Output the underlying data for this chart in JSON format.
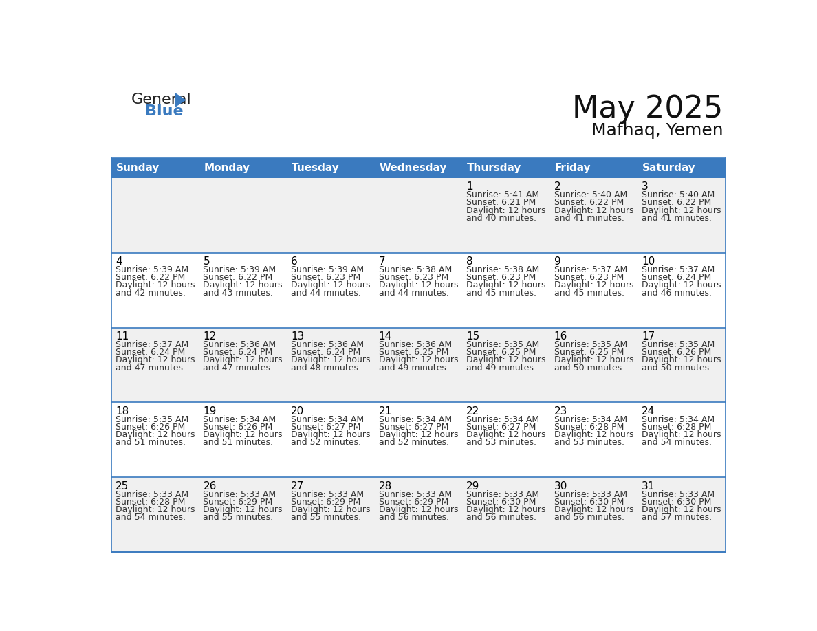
{
  "title": "May 2025",
  "subtitle": "Mafhaq, Yemen",
  "header_bg": "#3a7abf",
  "header_text_color": "#ffffff",
  "days_of_week": [
    "Sunday",
    "Monday",
    "Tuesday",
    "Wednesday",
    "Thursday",
    "Friday",
    "Saturday"
  ],
  "cell_bg_light": "#f0f0f0",
  "cell_bg_white": "#ffffff",
  "cell_border_color": "#3a7abf",
  "day_number_color": "#000000",
  "info_text_color": "#333333",
  "title_fontsize": 32,
  "subtitle_fontsize": 18,
  "header_fontsize": 11,
  "day_num_fontsize": 11,
  "cell_text_fontsize": 9,
  "calendar_data": [
    [
      {
        "day": "",
        "sunrise": "",
        "sunset": "",
        "daylight": ""
      },
      {
        "day": "",
        "sunrise": "",
        "sunset": "",
        "daylight": ""
      },
      {
        "day": "",
        "sunrise": "",
        "sunset": "",
        "daylight": ""
      },
      {
        "day": "",
        "sunrise": "",
        "sunset": "",
        "daylight": ""
      },
      {
        "day": "1",
        "sunrise": "5:41 AM",
        "sunset": "6:21 PM",
        "daylight": "12 hours and 40 minutes."
      },
      {
        "day": "2",
        "sunrise": "5:40 AM",
        "sunset": "6:22 PM",
        "daylight": "12 hours and 41 minutes."
      },
      {
        "day": "3",
        "sunrise": "5:40 AM",
        "sunset": "6:22 PM",
        "daylight": "12 hours and 41 minutes."
      }
    ],
    [
      {
        "day": "4",
        "sunrise": "5:39 AM",
        "sunset": "6:22 PM",
        "daylight": "12 hours and 42 minutes."
      },
      {
        "day": "5",
        "sunrise": "5:39 AM",
        "sunset": "6:22 PM",
        "daylight": "12 hours and 43 minutes."
      },
      {
        "day": "6",
        "sunrise": "5:39 AM",
        "sunset": "6:23 PM",
        "daylight": "12 hours and 44 minutes."
      },
      {
        "day": "7",
        "sunrise": "5:38 AM",
        "sunset": "6:23 PM",
        "daylight": "12 hours and 44 minutes."
      },
      {
        "day": "8",
        "sunrise": "5:38 AM",
        "sunset": "6:23 PM",
        "daylight": "12 hours and 45 minutes."
      },
      {
        "day": "9",
        "sunrise": "5:37 AM",
        "sunset": "6:23 PM",
        "daylight": "12 hours and 45 minutes."
      },
      {
        "day": "10",
        "sunrise": "5:37 AM",
        "sunset": "6:24 PM",
        "daylight": "12 hours and 46 minutes."
      }
    ],
    [
      {
        "day": "11",
        "sunrise": "5:37 AM",
        "sunset": "6:24 PM",
        "daylight": "12 hours and 47 minutes."
      },
      {
        "day": "12",
        "sunrise": "5:36 AM",
        "sunset": "6:24 PM",
        "daylight": "12 hours and 47 minutes."
      },
      {
        "day": "13",
        "sunrise": "5:36 AM",
        "sunset": "6:24 PM",
        "daylight": "12 hours and 48 minutes."
      },
      {
        "day": "14",
        "sunrise": "5:36 AM",
        "sunset": "6:25 PM",
        "daylight": "12 hours and 49 minutes."
      },
      {
        "day": "15",
        "sunrise": "5:35 AM",
        "sunset": "6:25 PM",
        "daylight": "12 hours and 49 minutes."
      },
      {
        "day": "16",
        "sunrise": "5:35 AM",
        "sunset": "6:25 PM",
        "daylight": "12 hours and 50 minutes."
      },
      {
        "day": "17",
        "sunrise": "5:35 AM",
        "sunset": "6:26 PM",
        "daylight": "12 hours and 50 minutes."
      }
    ],
    [
      {
        "day": "18",
        "sunrise": "5:35 AM",
        "sunset": "6:26 PM",
        "daylight": "12 hours and 51 minutes."
      },
      {
        "day": "19",
        "sunrise": "5:34 AM",
        "sunset": "6:26 PM",
        "daylight": "12 hours and 51 minutes."
      },
      {
        "day": "20",
        "sunrise": "5:34 AM",
        "sunset": "6:27 PM",
        "daylight": "12 hours and 52 minutes."
      },
      {
        "day": "21",
        "sunrise": "5:34 AM",
        "sunset": "6:27 PM",
        "daylight": "12 hours and 52 minutes."
      },
      {
        "day": "22",
        "sunrise": "5:34 AM",
        "sunset": "6:27 PM",
        "daylight": "12 hours and 53 minutes."
      },
      {
        "day": "23",
        "sunrise": "5:34 AM",
        "sunset": "6:28 PM",
        "daylight": "12 hours and 53 minutes."
      },
      {
        "day": "24",
        "sunrise": "5:34 AM",
        "sunset": "6:28 PM",
        "daylight": "12 hours and 54 minutes."
      }
    ],
    [
      {
        "day": "25",
        "sunrise": "5:33 AM",
        "sunset": "6:28 PM",
        "daylight": "12 hours and 54 minutes."
      },
      {
        "day": "26",
        "sunrise": "5:33 AM",
        "sunset": "6:29 PM",
        "daylight": "12 hours and 55 minutes."
      },
      {
        "day": "27",
        "sunrise": "5:33 AM",
        "sunset": "6:29 PM",
        "daylight": "12 hours and 55 minutes."
      },
      {
        "day": "28",
        "sunrise": "5:33 AM",
        "sunset": "6:29 PM",
        "daylight": "12 hours and 56 minutes."
      },
      {
        "day": "29",
        "sunrise": "5:33 AM",
        "sunset": "6:30 PM",
        "daylight": "12 hours and 56 minutes."
      },
      {
        "day": "30",
        "sunrise": "5:33 AM",
        "sunset": "6:30 PM",
        "daylight": "12 hours and 56 minutes."
      },
      {
        "day": "31",
        "sunrise": "5:33 AM",
        "sunset": "6:30 PM",
        "daylight": "12 hours and 57 minutes."
      }
    ]
  ]
}
